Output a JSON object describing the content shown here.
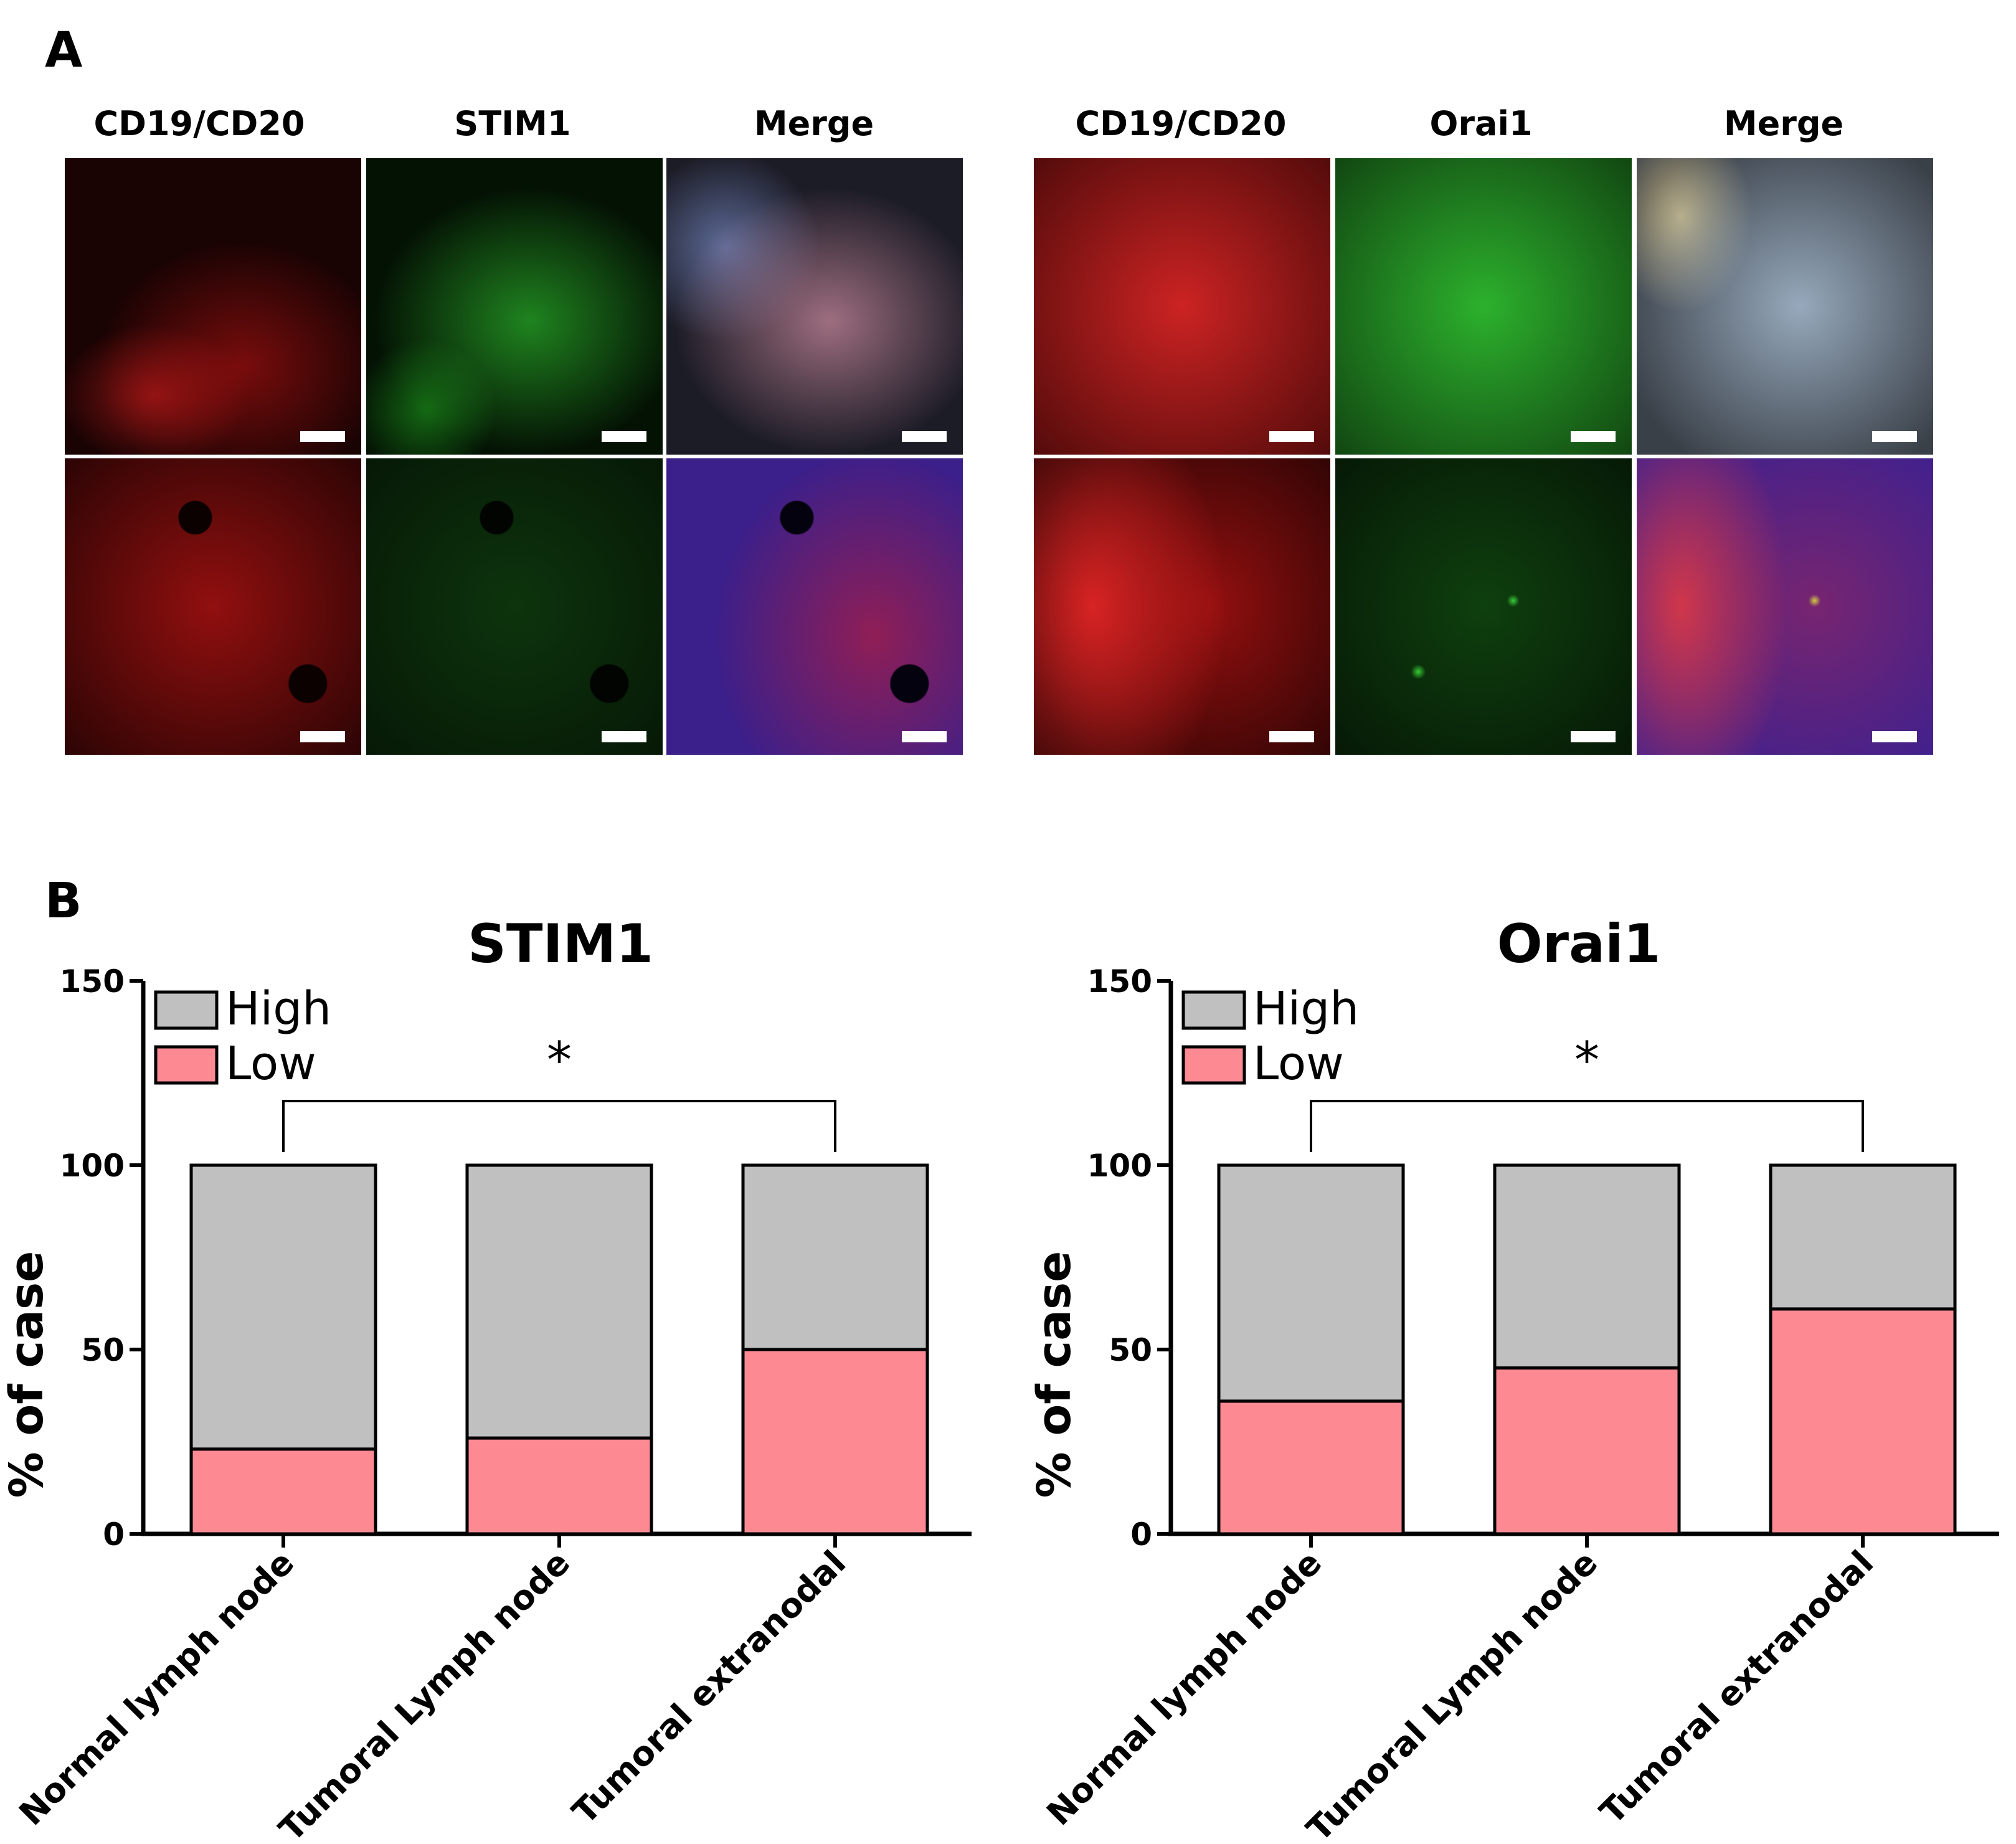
{
  "panel_a": {
    "letter": "A",
    "groups": [
      {
        "labels": [
          "CD19/CD20",
          "STIM1",
          "Merge"
        ]
      },
      {
        "labels": [
          "CD19/CD20",
          "Orai1",
          "Merge"
        ]
      }
    ]
  },
  "panel_b": {
    "letter": "B"
  },
  "chart_data": [
    {
      "type": "bar",
      "stacked": true,
      "title": "STIM1",
      "ylabel": "% of case",
      "xlabel": "",
      "ylim": [
        0,
        150
      ],
      "yticks": [
        0,
        50,
        100,
        150
      ],
      "categories": [
        "Normal lymph node",
        "Tumoral Lymph node",
        "Tumoral extranodal"
      ],
      "series": [
        {
          "name": "Low",
          "color": "#fd8a93",
          "values": [
            23,
            26,
            50
          ]
        },
        {
          "name": "High",
          "color": "#c0c0c0",
          "values": [
            77,
            74,
            50
          ]
        }
      ],
      "legend": {
        "placement": "top-left",
        "order": [
          "High",
          "Low"
        ]
      },
      "annotation": {
        "text": "*",
        "from_category": 0,
        "to_category": 2
      },
      "grid": false
    },
    {
      "type": "bar",
      "stacked": true,
      "title": "Orai1",
      "ylabel": "% of case",
      "xlabel": "",
      "ylim": [
        0,
        150
      ],
      "yticks": [
        0,
        50,
        100,
        150
      ],
      "categories": [
        "Normal lymph node",
        "Tumoral Lymph node",
        "Tumoral extranodal"
      ],
      "series": [
        {
          "name": "Low",
          "color": "#fd8a93",
          "values": [
            36,
            45,
            61
          ]
        },
        {
          "name": "High",
          "color": "#c0c0c0",
          "values": [
            64,
            55,
            39
          ]
        }
      ],
      "legend": {
        "placement": "top-left",
        "order": [
          "High",
          "Low"
        ]
      },
      "annotation": {
        "text": "*",
        "from_category": 0,
        "to_category": 2
      },
      "grid": false
    }
  ]
}
